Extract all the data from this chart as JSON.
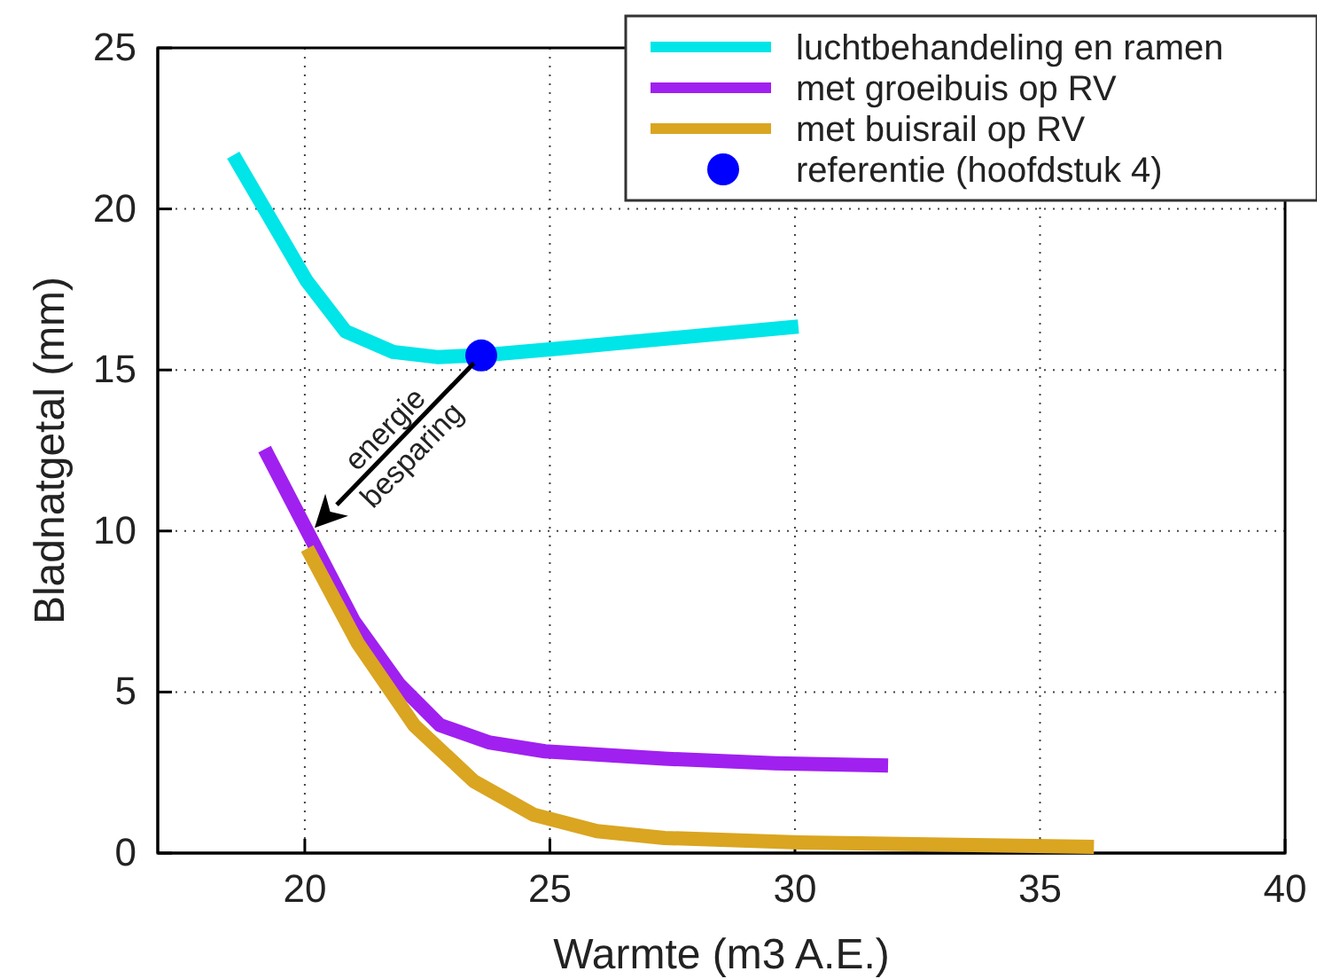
{
  "chart_data": {
    "type": "line",
    "xlabel": "Warmte (m3 A.E.)",
    "ylabel": "Bladnatgetal (mm)",
    "xlim": [
      17,
      40
    ],
    "xticks": [
      20,
      25,
      30,
      35,
      40
    ],
    "ylim": [
      0,
      25
    ],
    "yticks": [
      0,
      5,
      10,
      15,
      20,
      25
    ],
    "grid": true,
    "legend": "top right",
    "line_style": "solid",
    "marker": "none",
    "series": [
      {
        "name": "luchtbehandeling en ramen",
        "color": "#00e5e8",
        "x": [
          18.54,
          20.04,
          20.83,
          21.8,
          22.7,
          23.64,
          25.1,
          30.07
        ],
        "values": [
          21.67,
          17.76,
          16.2,
          15.56,
          15.4,
          15.46,
          15.65,
          16.35
        ]
      },
      {
        "name": "met groeibuis op RV",
        "color": "#a020f0",
        "x": [
          19.18,
          20.17,
          21.0,
          21.92,
          22.76,
          23.75,
          24.9,
          27.33,
          29.6,
          31.9
        ],
        "values": [
          12.54,
          9.64,
          7.2,
          5.25,
          3.97,
          3.44,
          3.16,
          2.93,
          2.79,
          2.72
        ]
      },
      {
        "name": "met buisrail op RV",
        "color": "#daa520",
        "x": [
          20.05,
          21.08,
          22.23,
          23.45,
          24.67,
          25.96,
          27.34,
          30.08,
          36.1
        ],
        "values": [
          9.46,
          6.52,
          3.97,
          2.23,
          1.19,
          0.68,
          0.47,
          0.33,
          0.19
        ]
      },
      {
        "name": "referentie (hoofdstuk 4)",
        "type": "scatter",
        "marker": "circle",
        "color": "#0000ff",
        "x": [
          23.6
        ],
        "values": [
          15.45
        ]
      }
    ],
    "annotations": [
      {
        "text": "energie\nbesparing",
        "x": 20.2,
        "y": 10.1
      }
    ]
  }
}
